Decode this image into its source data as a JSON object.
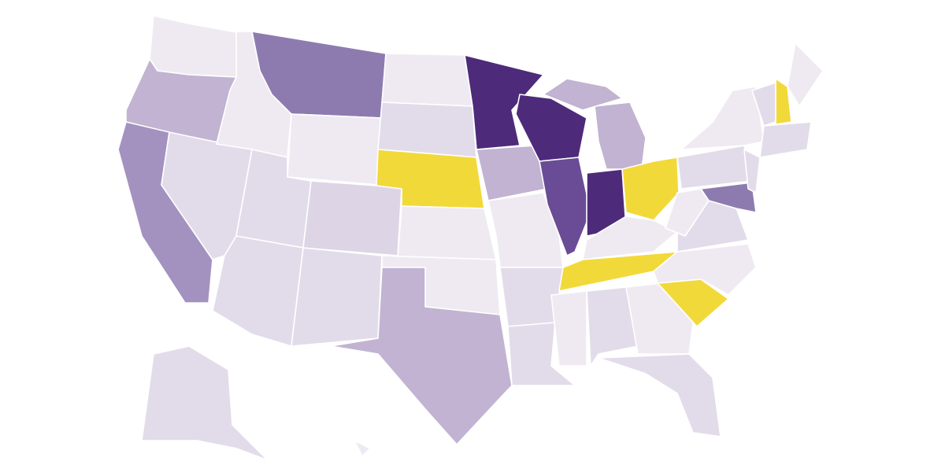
{
  "map": {
    "regions": [
      {
        "color": "#efeaf2"
      },
      {
        "color": "#c1b3d1"
      },
      {
        "color": "#a392c0"
      },
      {
        "color": "#e2dcea"
      },
      {
        "color": "#efeaf2"
      },
      {
        "color": "#8d7bb0"
      },
      {
        "color": "#efeaf2"
      },
      {
        "color": "#e2dcea"
      },
      {
        "color": "#ddd5e5"
      },
      {
        "color": "#e2dcea"
      },
      {
        "color": "#e2dcea"
      },
      {
        "color": "#efeaf2"
      },
      {
        "color": "#e2dcea"
      },
      {
        "color": "#f2d93a"
      },
      {
        "color": "#efeaf2"
      },
      {
        "color": "#efeaf2"
      },
      {
        "color": "#c1b3d1"
      },
      {
        "color": "#4e2a7a"
      },
      {
        "color": "#c1b3d1"
      },
      {
        "color": "#efeaf2"
      },
      {
        "color": "#e2dcea"
      },
      {
        "color": "#e2dcea"
      },
      {
        "color": "#4e2a7a"
      },
      {
        "color": "#6a4c96"
      },
      {
        "color": "#4e2a7a"
      },
      {
        "color": "#c1b3d1"
      },
      {
        "color": "#c1b3d1"
      },
      {
        "color": "#f2d93a"
      },
      {
        "color": "#efeaf2"
      },
      {
        "color": "#f2d93a"
      },
      {
        "color": "#efeaf2"
      },
      {
        "color": "#e2dcea"
      },
      {
        "color": "#efeaf2"
      },
      {
        "color": "#e2dcea"
      },
      {
        "color": "#f2d93a"
      },
      {
        "color": "#efeaf2"
      },
      {
        "color": "#e2dcea"
      },
      {
        "color": "#efeaf2"
      },
      {
        "color": "#e2dcea"
      },
      {
        "color": "#8d7bb0"
      },
      {
        "color": "#e2dcea"
      },
      {
        "color": "#efeaf2"
      },
      {
        "color": "#e2dcea"
      },
      {
        "color": "#f2d93a"
      },
      {
        "color": "#efeaf2"
      },
      {
        "color": "#e2dcea"
      },
      {
        "color": "#e2dcea"
      },
      {
        "color": "#efeaf2"
      }
    ]
  }
}
